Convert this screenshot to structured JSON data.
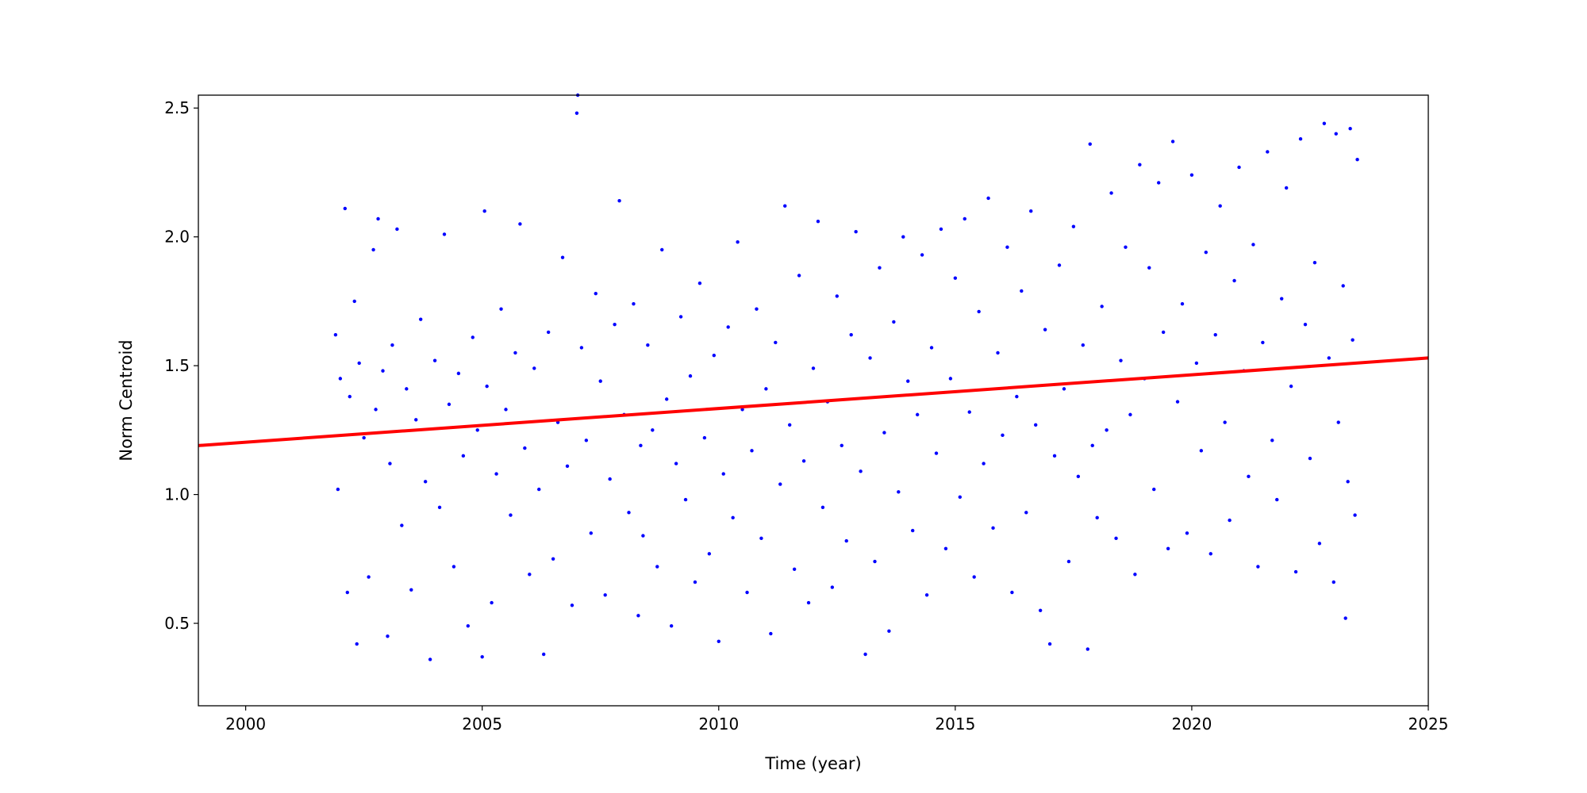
{
  "chart_data": {
    "type": "scatter",
    "title": "",
    "xlabel": "Time (year)",
    "ylabel": "Norm Centroid",
    "xlim": [
      1999,
      2025
    ],
    "ylim": [
      0.18,
      2.55
    ],
    "xticks": [
      2000,
      2005,
      2010,
      2015,
      2020,
      2025
    ],
    "xtick_labels": [
      "2000",
      "2005",
      "2010",
      "2015",
      "2020",
      "2025"
    ],
    "yticks": [
      0.5,
      1.0,
      1.5,
      2.0,
      2.5
    ],
    "ytick_labels": [
      "0.5",
      "1.0",
      "1.5",
      "2.0",
      "2.5"
    ],
    "grid": false,
    "colors": {
      "points": "#0000ff",
      "fit": "#ff0000"
    },
    "note_points": "representative sample of the dense scatter",
    "points": [
      [
        2001.9,
        1.62
      ],
      [
        2001.95,
        1.02
      ],
      [
        2002.0,
        1.45
      ],
      [
        2002.1,
        2.11
      ],
      [
        2002.15,
        0.62
      ],
      [
        2002.2,
        1.38
      ],
      [
        2002.3,
        1.75
      ],
      [
        2002.35,
        0.42
      ],
      [
        2002.4,
        1.51
      ],
      [
        2002.5,
        1.22
      ],
      [
        2002.6,
        0.68
      ],
      [
        2002.7,
        1.95
      ],
      [
        2002.75,
        1.33
      ],
      [
        2002.8,
        2.07
      ],
      [
        2002.9,
        1.48
      ],
      [
        2003.0,
        0.45
      ],
      [
        2003.05,
        1.12
      ],
      [
        2003.1,
        1.58
      ],
      [
        2003.2,
        2.03
      ],
      [
        2003.3,
        0.88
      ],
      [
        2003.4,
        1.41
      ],
      [
        2003.5,
        0.63
      ],
      [
        2003.6,
        1.29
      ],
      [
        2003.7,
        1.68
      ],
      [
        2003.8,
        1.05
      ],
      [
        2003.9,
        0.36
      ],
      [
        2004.0,
        1.52
      ],
      [
        2004.1,
        0.95
      ],
      [
        2004.2,
        2.01
      ],
      [
        2004.3,
        1.35
      ],
      [
        2004.4,
        0.72
      ],
      [
        2004.5,
        1.47
      ],
      [
        2004.6,
        1.15
      ],
      [
        2004.7,
        0.49
      ],
      [
        2004.8,
        1.61
      ],
      [
        2004.9,
        1.25
      ],
      [
        2005.0,
        0.37
      ],
      [
        2005.05,
        2.1
      ],
      [
        2005.1,
        1.42
      ],
      [
        2005.2,
        0.58
      ],
      [
        2005.3,
        1.08
      ],
      [
        2005.4,
        1.72
      ],
      [
        2005.5,
        1.33
      ],
      [
        2005.6,
        0.92
      ],
      [
        2005.7,
        1.55
      ],
      [
        2005.8,
        2.05
      ],
      [
        2005.9,
        1.18
      ],
      [
        2006.0,
        0.69
      ],
      [
        2006.1,
        1.49
      ],
      [
        2006.2,
        1.02
      ],
      [
        2006.3,
        0.38
      ],
      [
        2006.4,
        1.63
      ],
      [
        2006.5,
        0.75
      ],
      [
        2006.6,
        1.28
      ],
      [
        2006.7,
        1.92
      ],
      [
        2006.8,
        1.11
      ],
      [
        2006.9,
        0.57
      ],
      [
        2007.0,
        2.48
      ],
      [
        2007.02,
        2.55
      ],
      [
        2007.1,
        1.57
      ],
      [
        2007.2,
        1.21
      ],
      [
        2007.3,
        0.85
      ],
      [
        2007.4,
        1.78
      ],
      [
        2007.5,
        1.44
      ],
      [
        2007.6,
        0.61
      ],
      [
        2007.7,
        1.06
      ],
      [
        2007.8,
        1.66
      ],
      [
        2007.9,
        2.14
      ],
      [
        2008.0,
        1.31
      ],
      [
        2008.1,
        0.93
      ],
      [
        2008.2,
        1.74
      ],
      [
        2008.3,
        0.53
      ],
      [
        2008.35,
        1.19
      ],
      [
        2008.4,
        0.84
      ],
      [
        2008.5,
        1.58
      ],
      [
        2008.6,
        1.25
      ],
      [
        2008.7,
        0.72
      ],
      [
        2008.8,
        1.95
      ],
      [
        2008.9,
        1.37
      ],
      [
        2009.0,
        0.49
      ],
      [
        2009.1,
        1.12
      ],
      [
        2009.2,
        1.69
      ],
      [
        2009.3,
        0.98
      ],
      [
        2009.4,
        1.46
      ],
      [
        2009.5,
        0.66
      ],
      [
        2009.6,
        1.82
      ],
      [
        2009.7,
        1.22
      ],
      [
        2009.8,
        0.77
      ],
      [
        2009.9,
        1.54
      ],
      [
        2010.0,
        0.43
      ],
      [
        2010.1,
        1.08
      ],
      [
        2010.2,
        1.65
      ],
      [
        2010.3,
        0.91
      ],
      [
        2010.4,
        1.98
      ],
      [
        2010.5,
        1.33
      ],
      [
        2010.6,
        0.62
      ],
      [
        2010.7,
        1.17
      ],
      [
        2010.8,
        1.72
      ],
      [
        2010.9,
        0.83
      ],
      [
        2011.0,
        1.41
      ],
      [
        2011.1,
        0.46
      ],
      [
        2011.2,
        1.59
      ],
      [
        2011.3,
        1.04
      ],
      [
        2011.4,
        2.12
      ],
      [
        2011.5,
        1.27
      ],
      [
        2011.6,
        0.71
      ],
      [
        2011.7,
        1.85
      ],
      [
        2011.8,
        1.13
      ],
      [
        2011.9,
        0.58
      ],
      [
        2012.0,
        1.49
      ],
      [
        2012.1,
        2.06
      ],
      [
        2012.2,
        0.95
      ],
      [
        2012.3,
        1.36
      ],
      [
        2012.4,
        0.64
      ],
      [
        2012.5,
        1.77
      ],
      [
        2012.6,
        1.19
      ],
      [
        2012.7,
        0.82
      ],
      [
        2012.8,
        1.62
      ],
      [
        2012.9,
        2.02
      ],
      [
        2013.0,
        1.09
      ],
      [
        2013.1,
        0.38
      ],
      [
        2013.2,
        1.53
      ],
      [
        2013.3,
        0.74
      ],
      [
        2013.4,
        1.88
      ],
      [
        2013.5,
        1.24
      ],
      [
        2013.6,
        0.47
      ],
      [
        2013.7,
        1.67
      ],
      [
        2013.8,
        1.01
      ],
      [
        2013.9,
        2.0
      ],
      [
        2014.0,
        1.44
      ],
      [
        2014.1,
        0.86
      ],
      [
        2014.2,
        1.31
      ],
      [
        2014.3,
        1.93
      ],
      [
        2014.4,
        0.61
      ],
      [
        2014.5,
        1.57
      ],
      [
        2014.6,
        1.16
      ],
      [
        2014.7,
        2.03
      ],
      [
        2014.8,
        0.79
      ],
      [
        2014.9,
        1.45
      ],
      [
        2015.0,
        1.84
      ],
      [
        2015.1,
        0.99
      ],
      [
        2015.2,
        2.07
      ],
      [
        2015.3,
        1.32
      ],
      [
        2015.4,
        0.68
      ],
      [
        2015.5,
        1.71
      ],
      [
        2015.6,
        1.12
      ],
      [
        2015.7,
        2.15
      ],
      [
        2015.8,
        0.87
      ],
      [
        2015.9,
        1.55
      ],
      [
        2016.0,
        1.23
      ],
      [
        2016.1,
        1.96
      ],
      [
        2016.2,
        0.62
      ],
      [
        2016.3,
        1.38
      ],
      [
        2016.4,
        1.79
      ],
      [
        2016.5,
        0.93
      ],
      [
        2016.6,
        2.1
      ],
      [
        2016.7,
        1.27
      ],
      [
        2016.8,
        0.55
      ],
      [
        2016.9,
        1.64
      ],
      [
        2017.0,
        0.42
      ],
      [
        2017.1,
        1.15
      ],
      [
        2017.2,
        1.89
      ],
      [
        2017.3,
        1.41
      ],
      [
        2017.4,
        0.74
      ],
      [
        2017.5,
        2.04
      ],
      [
        2017.6,
        1.07
      ],
      [
        2017.7,
        1.58
      ],
      [
        2017.8,
        0.4
      ],
      [
        2017.85,
        2.36
      ],
      [
        2017.9,
        1.19
      ],
      [
        2018.0,
        0.91
      ],
      [
        2018.1,
        1.73
      ],
      [
        2018.2,
        1.25
      ],
      [
        2018.3,
        2.17
      ],
      [
        2018.4,
        0.83
      ],
      [
        2018.5,
        1.52
      ],
      [
        2018.6,
        1.96
      ],
      [
        2018.7,
        1.31
      ],
      [
        2018.8,
        0.69
      ],
      [
        2018.9,
        2.28
      ],
      [
        2019.0,
        1.45
      ],
      [
        2019.1,
        1.88
      ],
      [
        2019.2,
        1.02
      ],
      [
        2019.3,
        2.21
      ],
      [
        2019.4,
        1.63
      ],
      [
        2019.5,
        0.79
      ],
      [
        2019.6,
        2.37
      ],
      [
        2019.7,
        1.36
      ],
      [
        2019.8,
        1.74
      ],
      [
        2019.9,
        0.85
      ],
      [
        2020.0,
        2.24
      ],
      [
        2020.1,
        1.51
      ],
      [
        2020.2,
        1.17
      ],
      [
        2020.3,
        1.94
      ],
      [
        2020.4,
        0.77
      ],
      [
        2020.5,
        1.62
      ],
      [
        2020.6,
        2.12
      ],
      [
        2020.7,
        1.28
      ],
      [
        2020.8,
        0.9
      ],
      [
        2020.9,
        1.83
      ],
      [
        2021.0,
        2.27
      ],
      [
        2021.1,
        1.48
      ],
      [
        2021.2,
        1.07
      ],
      [
        2021.3,
        1.97
      ],
      [
        2021.4,
        0.72
      ],
      [
        2021.5,
        1.59
      ],
      [
        2021.6,
        2.33
      ],
      [
        2021.7,
        1.21
      ],
      [
        2021.8,
        0.98
      ],
      [
        2021.9,
        1.76
      ],
      [
        2022.0,
        2.19
      ],
      [
        2022.1,
        1.42
      ],
      [
        2022.2,
        0.7
      ],
      [
        2022.3,
        2.38
      ],
      [
        2022.4,
        1.66
      ],
      [
        2022.5,
        1.14
      ],
      [
        2022.6,
        1.9
      ],
      [
        2022.7,
        0.81
      ],
      [
        2022.8,
        2.44
      ],
      [
        2022.9,
        1.53
      ],
      [
        2023.0,
        0.66
      ],
      [
        2023.05,
        2.4
      ],
      [
        2023.1,
        1.28
      ],
      [
        2023.2,
        1.81
      ],
      [
        2023.25,
        0.52
      ],
      [
        2023.3,
        1.05
      ],
      [
        2023.35,
        2.42
      ],
      [
        2023.4,
        1.6
      ],
      [
        2023.45,
        0.92
      ],
      [
        2023.5,
        2.3
      ]
    ],
    "fit_line": {
      "x": [
        1999,
        2025
      ],
      "y": [
        1.19,
        1.53
      ]
    }
  }
}
